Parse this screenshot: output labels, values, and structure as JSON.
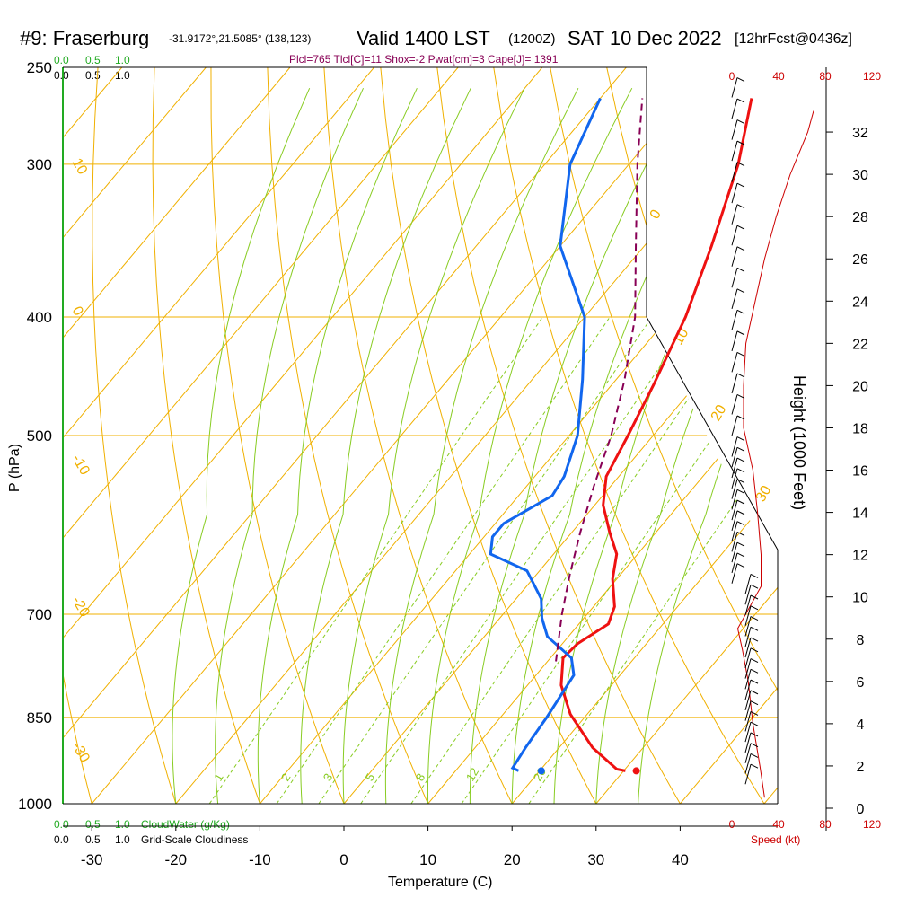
{
  "header": {
    "station": "#9: Fraserburg",
    "coords": "-31.9172°,21.5085° (138,123)",
    "valid": "Valid 1400 LST",
    "zulu": "(1200Z)",
    "date": "SAT 10 Dec 2022",
    "fcst": "[12hrFcst@0436z]",
    "indices": "Plcl=765 Tlcl[C]=11 Shox=-2 Pwat[cm]=3 Cape[J]= 1391"
  },
  "colors": {
    "temp": "#ee1111",
    "dew": "#1166ee",
    "parcel": "#880055",
    "isotherm": "#f0b000",
    "mixing": "#88cc22",
    "cloud": "#22aa22",
    "wind": "#000000",
    "speed": "#cc0000"
  },
  "legend": {
    "cloud_scale_top": [
      "0.0",
      "0.5",
      "1.0"
    ],
    "cloud_scale_top_black": [
      "0.0",
      "0.5",
      "1.0"
    ],
    "cloud_scale_bottom_green": [
      "0.0",
      "0.5",
      "1.0"
    ],
    "cloud_scale_bottom_black": [
      "0.0",
      "0.5",
      "1.0"
    ],
    "cloudwater_label": "CloudWater (g/Kg)",
    "cloudiness_label": "Grid-Scale Cloudiness"
  },
  "chart_data": {
    "type": "line",
    "xlabel": "Temperature (C)",
    "ylabel": "P (hPa)",
    "y2label": "Height (1000 Feet)",
    "speed_label": "Speed (kt)",
    "x_ticks": [
      -30,
      -20,
      -10,
      0,
      10,
      20,
      30,
      40
    ],
    "xlim": [
      -34,
      46
    ],
    "p_ticks": [
      250,
      300,
      400,
      500,
      700,
      850,
      1000
    ],
    "plim": [
      250,
      1000
    ],
    "height_ticks": [
      0,
      2,
      4,
      6,
      8,
      10,
      12,
      14,
      16,
      18,
      20,
      22,
      24,
      26,
      28,
      30,
      32
    ],
    "speed_ticks": [
      0,
      40,
      80,
      120
    ],
    "isotherm_labels": [
      "10",
      "0",
      "-10",
      "-20",
      "-30",
      "0",
      "10",
      "20",
      "30"
    ],
    "mixing_ratio_labels": [
      "1",
      "2",
      "3",
      "5",
      "8",
      "12",
      "20"
    ],
    "series": [
      {
        "kind": "temperature",
        "points": [
          [
            30.2,
            940
          ],
          [
            29,
            937
          ],
          [
            24,
            900
          ],
          [
            18,
            845
          ],
          [
            14,
            800
          ],
          [
            11.5,
            760
          ],
          [
            11.8,
            740
          ],
          [
            13.5,
            713
          ],
          [
            12.5,
            690
          ],
          [
            9.5,
            655
          ],
          [
            7.5,
            625
          ],
          [
            4.5,
            600
          ],
          [
            1,
            570
          ],
          [
            -1.5,
            540
          ],
          [
            -3,
            500
          ],
          [
            -5,
            455
          ],
          [
            -8,
            400
          ],
          [
            -12,
            350
          ],
          [
            -17,
            300
          ],
          [
            -22,
            265
          ]
        ]
      },
      {
        "kind": "dewpoint",
        "points": [
          [
            17.5,
            940
          ],
          [
            16.5,
            935
          ],
          [
            16,
            900
          ],
          [
            15.5,
            850
          ],
          [
            14.5,
            785
          ],
          [
            12.5,
            760
          ],
          [
            7.5,
            730
          ],
          [
            5,
            705
          ],
          [
            3,
            680
          ],
          [
            -1.5,
            645
          ],
          [
            -7.5,
            625
          ],
          [
            -9,
            605
          ],
          [
            -9,
            590
          ],
          [
            -6,
            560
          ],
          [
            -6.5,
            540
          ],
          [
            -9,
            500
          ],
          [
            -14,
            450
          ],
          [
            -20,
            400
          ],
          [
            -30,
            350
          ],
          [
            -37,
            300
          ],
          [
            -40,
            265
          ]
        ]
      },
      {
        "kind": "parcel",
        "points": [
          [
            11,
            765
          ],
          [
            7,
            700
          ],
          [
            4,
            650
          ],
          [
            1,
            600
          ],
          [
            -2,
            550
          ],
          [
            -5,
            500
          ],
          [
            -9,
            450
          ],
          [
            -14,
            400
          ],
          [
            -21,
            350
          ],
          [
            -29,
            300
          ],
          [
            -35,
            265
          ]
        ]
      }
    ],
    "surface_points": {
      "temperature": 31.5,
      "dewpoint": 20.2,
      "pressure": 940
    },
    "wind_speed_profile": [
      [
        28,
        0.5
      ],
      [
        24,
        2
      ],
      [
        18,
        4
      ],
      [
        14,
        6
      ],
      [
        9,
        7.5
      ],
      [
        5,
        8.5
      ],
      [
        15,
        9.5
      ],
      [
        25,
        10.5
      ],
      [
        25,
        12
      ],
      [
        22,
        14
      ],
      [
        18,
        16
      ],
      [
        10,
        18
      ],
      [
        10,
        20
      ],
      [
        12,
        22
      ],
      [
        20,
        24
      ],
      [
        28,
        26
      ],
      [
        38,
        28
      ],
      [
        50,
        30
      ],
      [
        65,
        32
      ],
      [
        70,
        33
      ]
    ],
    "wind_barbs_ft": [
      0.5,
      1,
      1.5,
      2,
      2.5,
      3,
      3.5,
      4,
      4.5,
      5,
      5.5,
      6,
      6.5,
      7,
      7.5,
      8,
      8.5,
      9,
      9.5,
      10,
      10.5,
      11,
      11.5,
      12,
      12.5,
      13,
      13.5,
      14,
      14.5,
      15,
      15.5,
      16,
      17,
      18,
      19,
      20,
      21,
      22,
      23,
      24,
      25,
      26,
      27,
      28,
      29,
      30,
      31,
      32,
      33
    ]
  }
}
